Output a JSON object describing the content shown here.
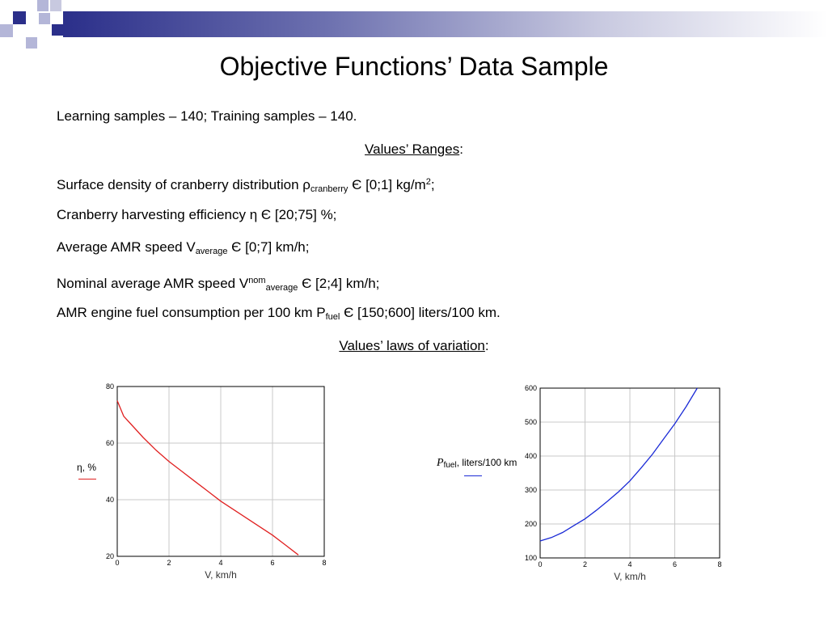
{
  "title": "Objective Functions’ Data Sample",
  "samples_line": "Learning samples – 140; Training samples – 140.",
  "ranges_heading": {
    "text": "Values’ Ranges",
    "suffix": ":"
  },
  "ranges": {
    "density": {
      "text": "Surface density of cranberry distribution ρ",
      "sub": "cranberry",
      "after": " Є [0;1] kg/m",
      "sup": "2",
      "end": ";"
    },
    "efficiency": {
      "text": "Cranberry harvesting efficiency η Є [20;75] %;"
    },
    "speed": {
      "text": "Average AMR speed V",
      "sub": "average",
      "after": " Є [0;7] km/h;"
    },
    "nominal_speed": {
      "text": "Nominal average AMR speed V",
      "sup": "nom",
      "sub": "average",
      "after": " Є [2;4] km/h;"
    },
    "fuel": {
      "text": "AMR engine fuel consumption per 100 km P",
      "sub": "fuel",
      "after": " Є [150;600] liters/100 km."
    }
  },
  "laws_heading": {
    "text": "Values’ laws of variation",
    "suffix": ":"
  },
  "chart_data": [
    {
      "type": "line",
      "xlabel": "V, km/h",
      "xlim": [
        0,
        8
      ],
      "ylim": [
        20,
        80
      ],
      "xticks": [
        "0",
        "2",
        "4",
        "6",
        "8"
      ],
      "yticks": [
        "20",
        "40",
        "60",
        "80"
      ],
      "grid": true,
      "legend_placement": "left",
      "series": [
        {
          "name": "η, %",
          "color": "#e02020",
          "x": [
            0,
            0.25,
            0.5,
            1,
            1.5,
            2,
            2.5,
            3,
            3.5,
            4,
            4.5,
            5,
            5.5,
            6,
            6.5,
            7
          ],
          "y": [
            75,
            69.5,
            67,
            62,
            57.5,
            53.5,
            50,
            46.5,
            43,
            39.5,
            36.5,
            33.5,
            30.5,
            27.5,
            24,
            20.5
          ]
        }
      ]
    },
    {
      "type": "line",
      "xlabel": "V, km/h",
      "xlim": [
        0,
        8
      ],
      "ylim": [
        100,
        600
      ],
      "xticks": [
        "0",
        "2",
        "4",
        "6",
        "8"
      ],
      "yticks": [
        "100",
        "200",
        "300",
        "400",
        "500",
        "600"
      ],
      "grid": true,
      "legend_placement": "left",
      "series": [
        {
          "name_symbol": "P",
          "name_sub": "fuel",
          "name_rest": ", liters/100 km",
          "color": "#1a2ad6",
          "x": [
            0,
            0.5,
            1,
            1.5,
            2,
            2.5,
            3,
            3.5,
            4,
            4.5,
            5,
            5.5,
            6,
            6.5,
            7
          ],
          "y": [
            150,
            160,
            175,
            195,
            215,
            240,
            267,
            295,
            327,
            365,
            405,
            450,
            495,
            545,
            600
          ]
        }
      ]
    }
  ]
}
